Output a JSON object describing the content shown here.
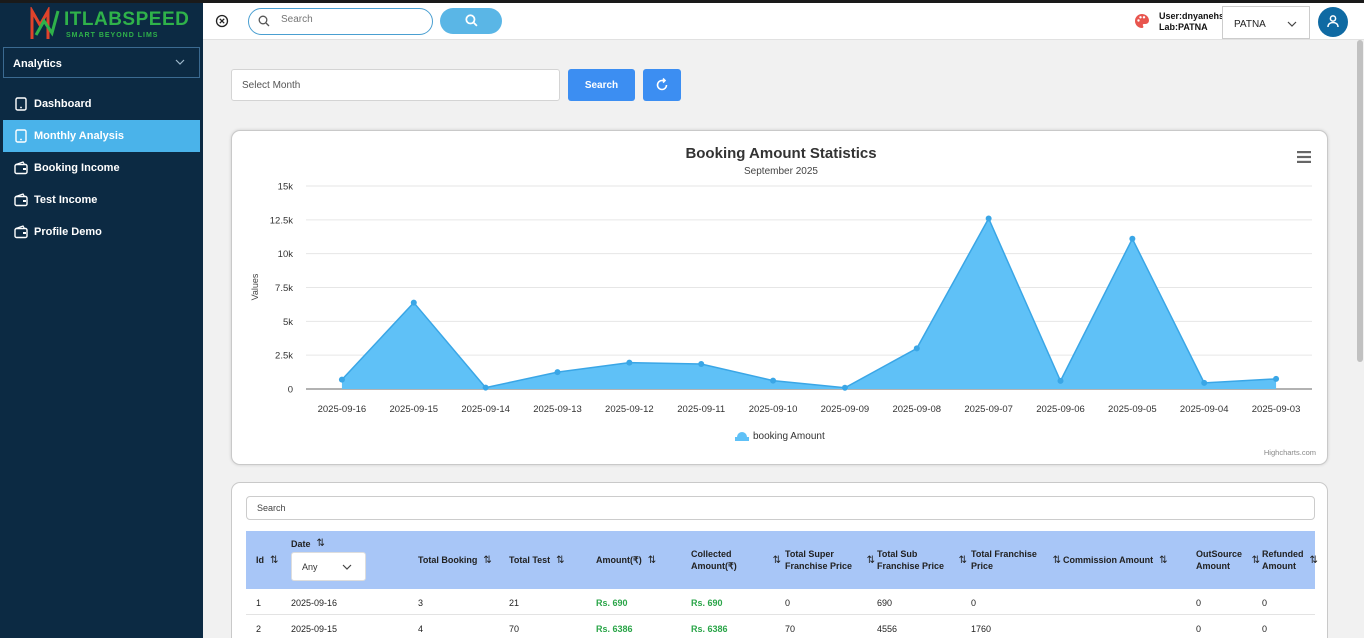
{
  "brand": {
    "name": "ITLABSPEED",
    "tagline": "SMART BEYOND LIMS"
  },
  "sidebar": {
    "module": "Analytics",
    "items": [
      {
        "label": "Dashboard",
        "icon": "tablet-icon",
        "active": false
      },
      {
        "label": "Monthly Analysis",
        "icon": "tablet-icon",
        "active": true
      },
      {
        "label": "Booking Income",
        "icon": "wallet-icon",
        "active": false
      },
      {
        "label": "Test Income",
        "icon": "wallet-icon",
        "active": false
      },
      {
        "label": "Profile Demo",
        "icon": "wallet-icon",
        "active": false
      }
    ]
  },
  "header": {
    "search_placeholder": "Search",
    "user_line": "User:dnyanehs",
    "lab_line": "Lab:PATNA",
    "lab_selected": "PATNA"
  },
  "filters": {
    "month_placeholder": "Select Month",
    "search_label": "Search"
  },
  "chart_data": {
    "type": "area",
    "title": "Booking Amount Statistics",
    "subtitle": "September 2025",
    "ylabel": "Values",
    "xlabel": "",
    "ylim": [
      0,
      15000
    ],
    "yticks": [
      "0",
      "2.5k",
      "5k",
      "7.5k",
      "10k",
      "12.5k",
      "15k"
    ],
    "categories": [
      "2025-09-16",
      "2025-09-15",
      "2025-09-14",
      "2025-09-13",
      "2025-09-12",
      "2025-09-11",
      "2025-09-10",
      "2025-09-09",
      "2025-09-08",
      "2025-09-07",
      "2025-09-06",
      "2025-09-05",
      "2025-09-04",
      "2025-09-03"
    ],
    "series": [
      {
        "name": "booking Amount",
        "values": [
          690,
          6386,
          100,
          1250,
          1950,
          1850,
          620,
          90,
          3000,
          12600,
          600,
          11100,
          450,
          750
        ]
      }
    ],
    "legend_position": "bottom-center",
    "credit": "Highcharts.com",
    "color": "#5fc1f7",
    "line_color": "#3aa6e6"
  },
  "table": {
    "search_placeholder": "Search",
    "columns": [
      {
        "label": "Id"
      },
      {
        "label": "Date"
      },
      {
        "label": "Total Booking"
      },
      {
        "label": "Total Test"
      },
      {
        "label": "Amount(₹)"
      },
      {
        "label": "Collected Amount(₹)"
      },
      {
        "label": "Total Super Franchise Price"
      },
      {
        "label": "Total Sub Franchise Price"
      },
      {
        "label": "Total Franchise Price"
      },
      {
        "label": "Commission Amount"
      },
      {
        "label": "OutSource Amount"
      },
      {
        "label": "Refunded Amount"
      }
    ],
    "date_filter": "Any",
    "rows": [
      [
        "1",
        "2025-09-16",
        "3",
        "21",
        "Rs. 690",
        "Rs. 690",
        "0",
        "690",
        "0",
        "",
        "0",
        "0"
      ],
      [
        "2",
        "2025-09-15",
        "4",
        "70",
        "Rs. 6386",
        "Rs. 6386",
        "70",
        "4556",
        "1760",
        "",
        "0",
        "0"
      ]
    ]
  }
}
